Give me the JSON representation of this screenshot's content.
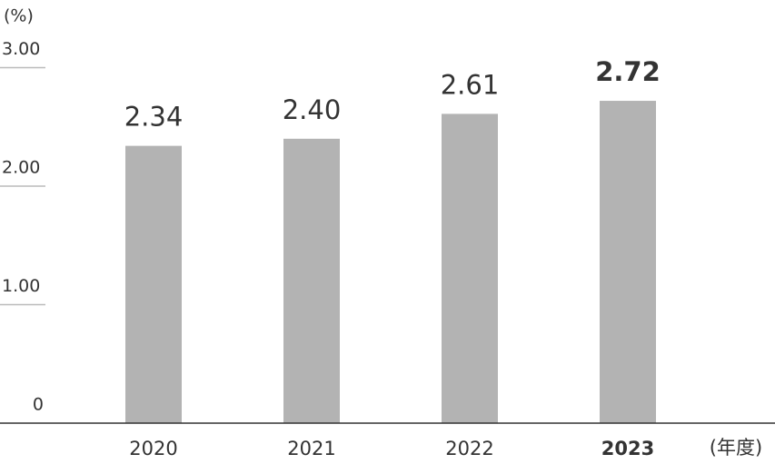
{
  "chart_data": {
    "type": "bar",
    "y_label": "(%)",
    "x_label": "(年度)",
    "categories": [
      "2020",
      "2021",
      "2022",
      "2023"
    ],
    "values": [
      2.34,
      2.4,
      2.61,
      2.72
    ],
    "value_labels": [
      "2.34",
      "2.40",
      "2.61",
      "2.72"
    ],
    "color": "#b3b3b3",
    "highlight_index": 3,
    "ylim": [
      0,
      3
    ],
    "yticks": [
      0,
      {
        "value": 1,
        "label": "1.00"
      },
      {
        "value": 2,
        "label": "2.00"
      },
      {
        "value": 3,
        "label": "3.00"
      }
    ],
    "grid": true
  }
}
